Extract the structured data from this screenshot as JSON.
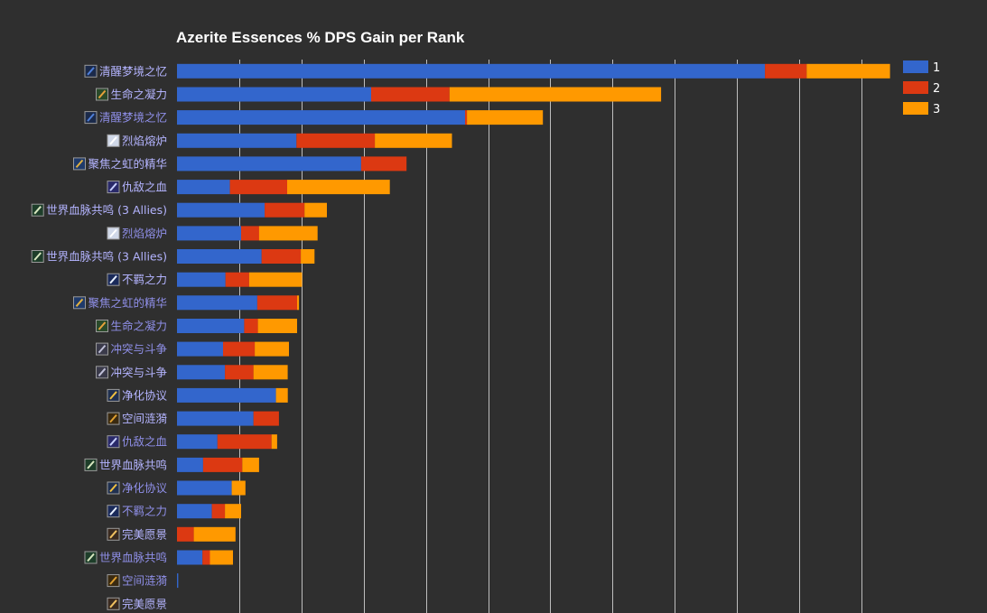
{
  "chart_data": {
    "type": "bar",
    "orientation": "horizontal",
    "stacked": true,
    "title": "Azerite Essences % DPS Gain per Rank",
    "xlabel": "",
    "ylabel": "",
    "grid": true,
    "legend_position": "top-right",
    "xlim": [
      0,
      11.5
    ],
    "categories": [
      {
        "label": "清醒梦境之忆",
        "icon": "dreamer-icon",
        "color": "#b4b4ff"
      },
      {
        "label": "生命之凝力",
        "icon": "life-binder-icon",
        "color": "#b4b4ff"
      },
      {
        "label": "清醒梦境之忆",
        "icon": "dreamer-icon",
        "color": "#8f8fe8"
      },
      {
        "label": "烈焰熔炉",
        "icon": "forge-icon",
        "color": "#b4b4ff"
      },
      {
        "label": "聚焦之虹的精华",
        "icon": "azerite-beam-icon",
        "color": "#b4b4ff"
      },
      {
        "label": "仇敌之血",
        "icon": "blood-icon",
        "color": "#b4b4ff"
      },
      {
        "label": "世界血脉共鸣 (3 Allies)",
        "icon": "lifeblood-icon",
        "color": "#b4b4ff"
      },
      {
        "label": "烈焰熔炉",
        "icon": "forge-icon",
        "color": "#8f8fe8"
      },
      {
        "label": "世界血脉共鸣 (3 Allies)",
        "icon": "lifeblood-icon",
        "color": "#b4b4ff"
      },
      {
        "label": "不羁之力",
        "icon": "unbound-force-icon",
        "color": "#b4b4ff"
      },
      {
        "label": "聚焦之虹的精华",
        "icon": "azerite-beam-icon",
        "color": "#8f8fe8"
      },
      {
        "label": "生命之凝力",
        "icon": "life-binder-icon",
        "color": "#8f8fe8"
      },
      {
        "label": "冲突与斗争",
        "icon": "conflict-icon",
        "color": "#8f8fe8"
      },
      {
        "label": "冲突与斗争",
        "icon": "conflict-icon",
        "color": "#b4b4ff"
      },
      {
        "label": "净化协议",
        "icon": "purification-icon",
        "color": "#b4b4ff"
      },
      {
        "label": "空间涟漪",
        "icon": "ripple-icon",
        "color": "#b4b4ff"
      },
      {
        "label": "仇敌之血",
        "icon": "blood-icon",
        "color": "#8f8fe8"
      },
      {
        "label": "世界血脉共鸣",
        "icon": "lifeblood-icon",
        "color": "#b4b4ff"
      },
      {
        "label": "净化协议",
        "icon": "purification-icon",
        "color": "#8f8fe8"
      },
      {
        "label": "不羁之力",
        "icon": "unbound-force-icon",
        "color": "#8f8fe8"
      },
      {
        "label": "完美愿景",
        "icon": "vision-icon",
        "color": "#b4b4ff"
      },
      {
        "label": "世界血脉共鸣",
        "icon": "lifeblood-icon",
        "color": "#8f8fe8"
      },
      {
        "label": "空间涟漪",
        "icon": "ripple-icon",
        "color": "#8f8fe8"
      },
      {
        "label": "完美愿景",
        "icon": "vision-icon",
        "color": "#b4b4ff"
      }
    ],
    "series": [
      {
        "name": "1",
        "color": "#3366cc",
        "values": [
          9.45,
          3.12,
          4.63,
          1.92,
          2.96,
          0.85,
          1.41,
          1.03,
          1.36,
          0.78,
          1.29,
          1.08,
          0.74,
          0.77,
          1.59,
          1.23,
          0.65,
          0.42,
          0.88,
          0.56,
          0.0,
          0.41,
          0.02,
          0.0
        ]
      },
      {
        "name": "2",
        "color": "#dc3912",
        "values": [
          0.67,
          1.26,
          0.03,
          1.26,
          0.73,
          0.92,
          0.64,
          0.29,
          0.63,
          0.38,
          0.64,
          0.22,
          0.51,
          0.46,
          0.0,
          0.41,
          0.87,
          0.63,
          0.0,
          0.21,
          0.27,
          0.12,
          0.0,
          0.0
        ]
      },
      {
        "name": "3",
        "color": "#ff9900",
        "values": [
          1.34,
          3.4,
          1.22,
          1.24,
          0.0,
          1.65,
          0.36,
          0.94,
          0.22,
          0.85,
          0.03,
          0.63,
          0.55,
          0.55,
          0.19,
          0.0,
          0.09,
          0.27,
          0.22,
          0.26,
          0.67,
          0.37,
          0.0,
          0.0
        ]
      }
    ]
  }
}
